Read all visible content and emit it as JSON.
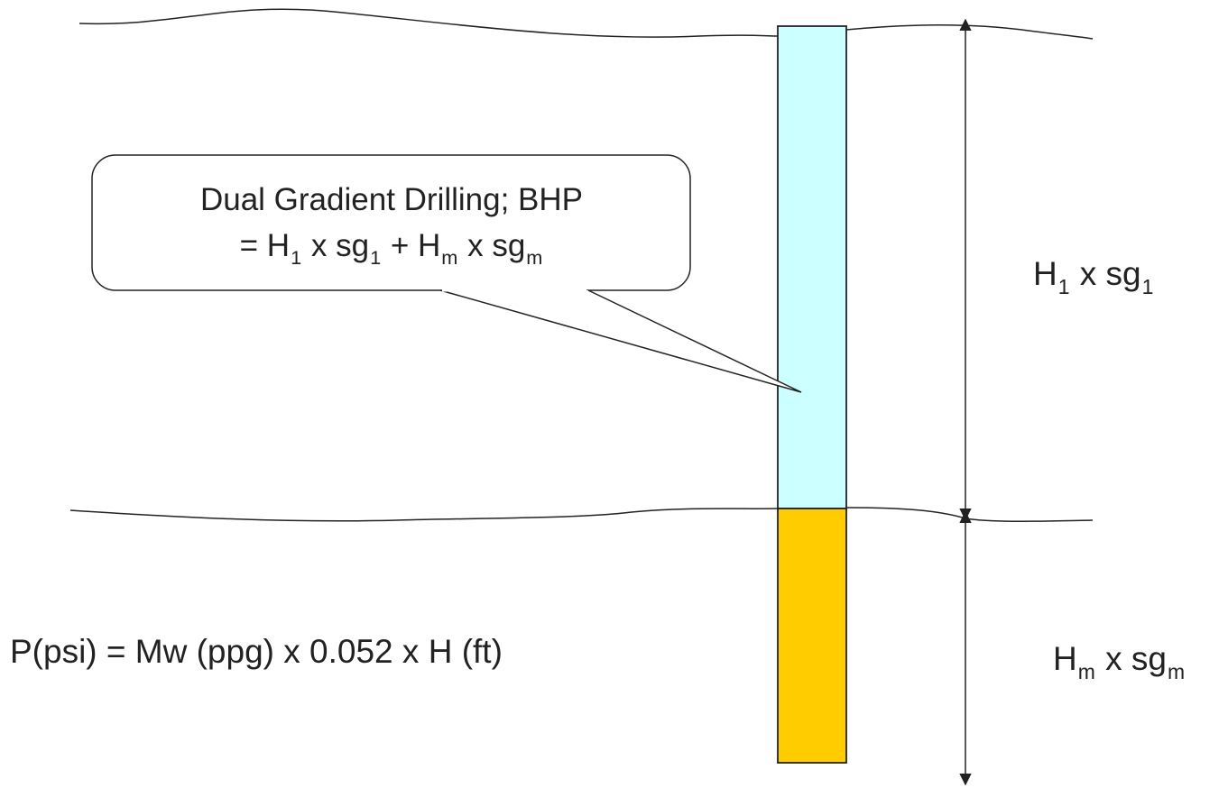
{
  "callout": {
    "line1": "Dual Gradient Drilling; BHP",
    "line2": {
      "eq": "= ",
      "h1": "H",
      "h1_sub": "1",
      "x1": " x sg",
      "sg1_sub": "1",
      "plus": " + ",
      "hm": "H",
      "hm_sub": "m",
      "x2": " x sg",
      "sgm_sub": "m"
    }
  },
  "upper_label": {
    "h": "H",
    "h_sub": "1",
    "x": " x sg",
    "sg_sub": "1"
  },
  "lower_label": {
    "h": "H",
    "h_sub": "m",
    "x": " x sg",
    "sg_sub": "m"
  },
  "formula": "P(psi) = Mw (ppg) x 0.052 x H (ft)",
  "colors": {
    "upper_fluid": "#ccffff",
    "lower_fluid": "#ffcc00",
    "stroke": "#222222",
    "text": "#222222"
  }
}
